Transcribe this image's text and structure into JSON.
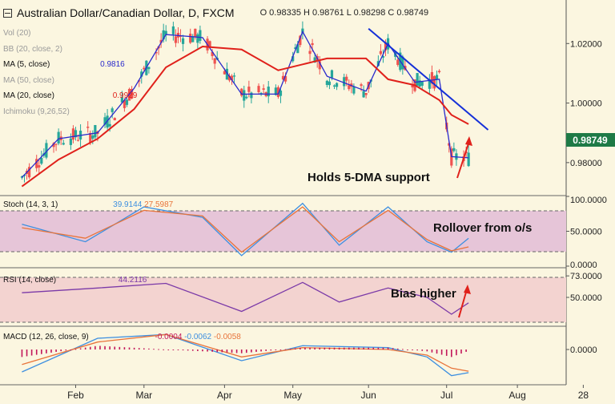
{
  "header": {
    "title": "Australian Dollar/Canadian Dollar, D, FXCM",
    "ohlc": "O 0.98335  H 0.98761  L 0.98298  C 0.98749"
  },
  "indicators": [
    {
      "label": "Vol (20)",
      "value": ""
    },
    {
      "label": "BB (20, close, 2)",
      "value": ""
    },
    {
      "label": "MA (5, close)",
      "value": "0.9816"
    },
    {
      "label": "MA (50, close)",
      "value": ""
    },
    {
      "label": "MA (20, close)",
      "value": "0.9929"
    },
    {
      "label": "Ichimoku (9,26,52)",
      "value": ""
    }
  ],
  "panels": {
    "stoch": {
      "label": "Stoch (14, 3, 1)",
      "k": "39.9144",
      "d": "27.5987"
    },
    "rsi": {
      "label": "RSI (14, close)",
      "value": "44.2116"
    },
    "macd": {
      "label": "MACD (12, 26, close, 9)",
      "hist": "-0.0004",
      "macd": "-0.0062",
      "signal": "-0.0058"
    }
  },
  "annotations": {
    "price": "Holds 5-DMA support",
    "stoch": "Rollover from o/s",
    "rsi": "Bias higher"
  },
  "last_price": "0.98749",
  "colors": {
    "up": "#26a69a",
    "down": "#ef5350",
    "ma5": "#2a2acc",
    "ma20": "#e0211b",
    "trend": "#1530d8",
    "stochK": "#3d8fe0",
    "stochD": "#e8743b",
    "rsi": "#7b3aa8",
    "macd": "#3d8fe0",
    "signal": "#e8743b",
    "hist": "#c2185b",
    "accent": "#1e7a46"
  },
  "chart_data": [
    {
      "type": "line",
      "panel": "price",
      "title": "Australian Dollar/Canadian Dollar, D, FXCM",
      "x": [
        "2017-01-10",
        "2017-01-25",
        "2017-02-10",
        "2017-02-25",
        "2017-03-10",
        "2017-03-25",
        "2017-04-10",
        "2017-04-25",
        "2017-05-05",
        "2017-05-15",
        "2017-05-31",
        "2017-06-09",
        "2017-06-20",
        "2017-06-30",
        "2017-07-05",
        "2017-07-12"
      ],
      "series": [
        {
          "name": "MA (5, close)",
          "values": [
            0.975,
            0.988,
            0.99,
            1.005,
            1.023,
            1.022,
            1.003,
            1.003,
            1.024,
            1.009,
            1.004,
            1.02,
            1.007,
            1.008,
            0.982,
            0.9816
          ]
        },
        {
          "name": "MA (20, close)",
          "values": [
            0.972,
            0.981,
            0.988,
            0.998,
            1.012,
            1.019,
            1.018,
            1.011,
            1.013,
            1.015,
            1.015,
            1.008,
            1.006,
            1.001,
            0.996,
            0.9929
          ]
        }
      ],
      "yticks": [
        "1.02000",
        "1.00000",
        "0.98000"
      ],
      "ylim": [
        0.97,
        1.033
      ],
      "trendline": {
        "from": [
          "2017-06-01",
          1.025
        ],
        "to": [
          "2017-07-20",
          0.991
        ]
      }
    },
    {
      "type": "line",
      "panel": "stoch",
      "x": [
        "2017-01-10",
        "2017-02-05",
        "2017-03-01",
        "2017-03-25",
        "2017-04-10",
        "2017-05-05",
        "2017-05-20",
        "2017-06-09",
        "2017-06-25",
        "2017-07-05",
        "2017-07-12"
      ],
      "series": [
        {
          "name": "%K",
          "values": [
            60,
            35,
            85,
            70,
            15,
            90,
            30,
            85,
            35,
            20,
            39.9
          ]
        },
        {
          "name": "%D",
          "values": [
            55,
            40,
            80,
            72,
            20,
            85,
            35,
            80,
            38,
            22,
            27.6
          ]
        }
      ],
      "yticks": [
        "100.0000",
        "50.0000",
        "0.0000"
      ],
      "ylim": [
        0,
        100
      ],
      "levels": [
        80,
        20
      ]
    },
    {
      "type": "line",
      "panel": "rsi",
      "x": [
        "2017-01-10",
        "2017-02-10",
        "2017-03-10",
        "2017-04-10",
        "2017-05-05",
        "2017-05-20",
        "2017-06-09",
        "2017-06-25",
        "2017-07-05",
        "2017-07-12"
      ],
      "series": [
        {
          "name": "RSI",
          "values": [
            55,
            60,
            65,
            35,
            66,
            45,
            60,
            50,
            32,
            44.2
          ]
        }
      ],
      "yticks": [
        "73.0000",
        "50.0000"
      ],
      "ylim": [
        20,
        80
      ],
      "levels": [
        70,
        30
      ]
    },
    {
      "type": "line",
      "panel": "macd",
      "x": [
        "2017-01-10",
        "2017-02-10",
        "2017-03-10",
        "2017-04-10",
        "2017-05-05",
        "2017-06-09",
        "2017-06-25",
        "2017-07-05",
        "2017-07-12"
      ],
      "series": [
        {
          "name": "MACD",
          "values": [
            -0.006,
            0.003,
            0.004,
            -0.003,
            0.001,
            0.0005,
            -0.002,
            -0.007,
            -0.0062
          ]
        },
        {
          "name": "Signal",
          "values": [
            -0.004,
            0.002,
            0.004,
            -0.002,
            0.0005,
            0.0,
            -0.0015,
            -0.005,
            -0.0058
          ]
        }
      ],
      "yticks": [
        "0.0000"
      ],
      "ylim": [
        -0.009,
        0.006
      ]
    }
  ],
  "xaxis_labels": [
    {
      "label": "Feb",
      "date": "2017-02-01"
    },
    {
      "label": "Mar",
      "date": "2017-03-01"
    },
    {
      "label": "Apr",
      "date": "2017-04-03"
    },
    {
      "label": "May",
      "date": "2017-05-01"
    },
    {
      "label": "Jun",
      "date": "2017-06-01"
    },
    {
      "label": "Jul",
      "date": "2017-07-03"
    },
    {
      "label": "Aug",
      "date": "2017-08-01"
    },
    {
      "label": "28",
      "date": "2017-08-28"
    }
  ]
}
